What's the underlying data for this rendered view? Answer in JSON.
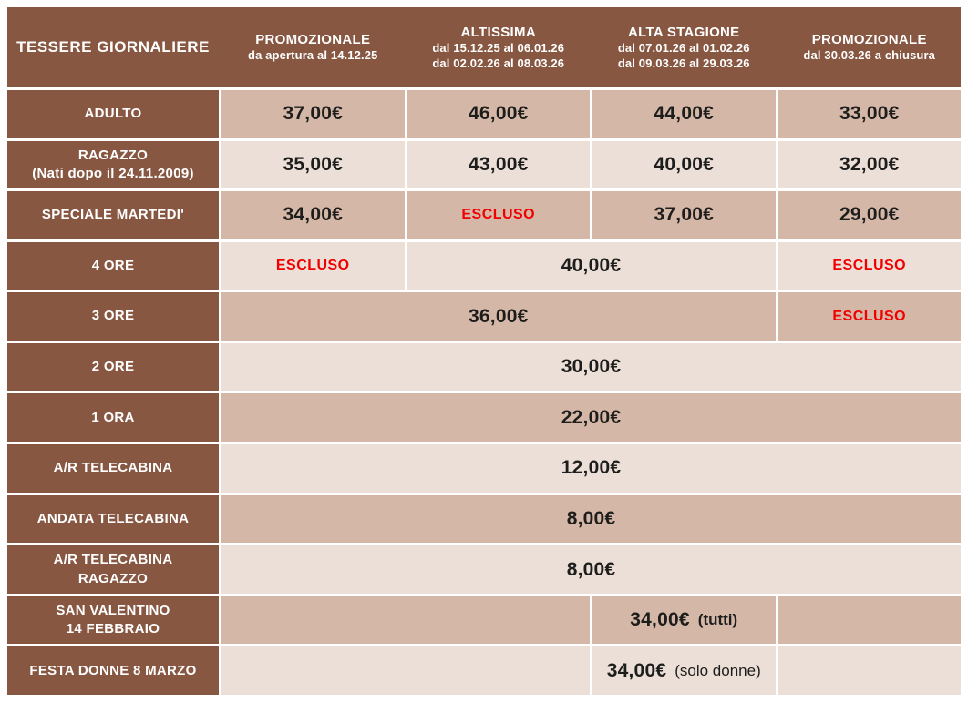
{
  "colors": {
    "brown": "#885742",
    "row_dark": "#d5b7a8",
    "row_light": "#ecdfd8",
    "excluded_red": "#f10000",
    "price_text": "#1d1d1b",
    "header_text": "#ffffff"
  },
  "table": {
    "header": {
      "label": "TESSERE GIORNALIERE",
      "columns": [
        {
          "title": "PROMOZIONALE",
          "line1": "da apertura al 14.12.25"
        },
        {
          "title": "ALTISSIMA",
          "line1": "dal 15.12.25 al 06.01.26",
          "line2": "dal 02.02.26 al 08.03.26"
        },
        {
          "title": "ALTA STAGIONE",
          "line1": "dal 07.01.26 al 01.02.26",
          "line2": "dal 09.03.26 al 29.03.26"
        },
        {
          "title": "PROMOZIONALE",
          "line1": "dal 30.03.26 a chiusura"
        }
      ]
    },
    "rows": [
      {
        "label": "ADULTO",
        "cells": [
          {
            "value": "37,00€"
          },
          {
            "value": "46,00€"
          },
          {
            "value": "44,00€"
          },
          {
            "value": "33,00€"
          }
        ]
      },
      {
        "label": "RAGAZZO",
        "label2": "(Nati dopo il 24.11.2009)",
        "cells": [
          {
            "value": "35,00€"
          },
          {
            "value": "43,00€"
          },
          {
            "value": "40,00€"
          },
          {
            "value": "32,00€"
          }
        ]
      },
      {
        "label": "SPECIALE MARTEDI'",
        "cells": [
          {
            "value": "34,00€"
          },
          {
            "value": "ESCLUSO",
            "excluded": true
          },
          {
            "value": "37,00€"
          },
          {
            "value": "29,00€"
          }
        ]
      },
      {
        "label": "4 ORE",
        "cells": [
          {
            "value": "ESCLUSO",
            "excluded": true
          },
          {
            "value": "40,00€",
            "span": 2
          },
          {
            "value": "ESCLUSO",
            "excluded": true
          }
        ]
      },
      {
        "label": "3 ORE",
        "cells": [
          {
            "value": "36,00€",
            "span": 3
          },
          {
            "value": "ESCLUSO",
            "excluded": true
          }
        ]
      },
      {
        "label": "2 ORE",
        "cells": [
          {
            "value": "30,00€",
            "span": 4
          }
        ]
      },
      {
        "label": "1 ORA",
        "cells": [
          {
            "value": "22,00€",
            "span": 4
          }
        ]
      },
      {
        "label": "A/R TELECABINA",
        "cells": [
          {
            "value": "12,00€",
            "span": 4
          }
        ]
      },
      {
        "label": "ANDATA TELECABINA",
        "cells": [
          {
            "value": "8,00€",
            "span": 4
          }
        ]
      },
      {
        "label": "A/R TELECABINA",
        "label2": "RAGAZZO",
        "cells": [
          {
            "value": "8,00€",
            "span": 4
          }
        ]
      },
      {
        "label": "SAN VALENTINO",
        "label2": "14 FEBBRAIO",
        "cells": [
          {
            "value": "",
            "span": 2
          },
          {
            "value": "34,00€",
            "suffix": "(tutti)"
          },
          {
            "value": ""
          }
        ]
      },
      {
        "label": "FESTA DONNE 8 MARZO",
        "cells": [
          {
            "value": "",
            "span": 2
          },
          {
            "value": "34,00€",
            "suffix": "(solo donne)"
          },
          {
            "value": ""
          }
        ]
      }
    ]
  },
  "chart_data": {
    "type": "table",
    "title": "TESSERE GIORNALIERE",
    "columns": [
      "TESSERE GIORNALIERE",
      "PROMOZIONALE da apertura al 14.12.25",
      "ALTISSIMA dal 15.12.25 al 06.01.26 dal 02.02.26 al 08.03.26",
      "ALTA STAGIONE dal 07.01.26 al 01.02.26 dal 09.03.26 al 29.03.26",
      "PROMOZIONALE dal 30.03.26 a chiusura"
    ],
    "rows": [
      [
        "ADULTO",
        "37,00€",
        "46,00€",
        "44,00€",
        "33,00€"
      ],
      [
        "RAGAZZO (Nati dopo il 24.11.2009)",
        "35,00€",
        "43,00€",
        "40,00€",
        "32,00€"
      ],
      [
        "SPECIALE MARTEDI'",
        "34,00€",
        "ESCLUSO",
        "37,00€",
        "29,00€"
      ],
      [
        "4 ORE",
        "ESCLUSO",
        "40,00€",
        "40,00€",
        "ESCLUSO"
      ],
      [
        "3 ORE",
        "36,00€",
        "36,00€",
        "36,00€",
        "ESCLUSO"
      ],
      [
        "2 ORE",
        "30,00€",
        "30,00€",
        "30,00€",
        "30,00€"
      ],
      [
        "1 ORA",
        "22,00€",
        "22,00€",
        "22,00€",
        "22,00€"
      ],
      [
        "A/R TELECABINA",
        "12,00€",
        "12,00€",
        "12,00€",
        "12,00€"
      ],
      [
        "ANDATA TELECABINA",
        "8,00€",
        "8,00€",
        "8,00€",
        "8,00€"
      ],
      [
        "A/R TELECABINA RAGAZZO",
        "8,00€",
        "8,00€",
        "8,00€",
        "8,00€"
      ],
      [
        "SAN VALENTINO 14 FEBBRAIO",
        "",
        "",
        "34,00€ (tutti)",
        ""
      ],
      [
        "FESTA DONNE 8 MARZO",
        "",
        "",
        "34,00€ (solo donne)",
        ""
      ]
    ]
  }
}
